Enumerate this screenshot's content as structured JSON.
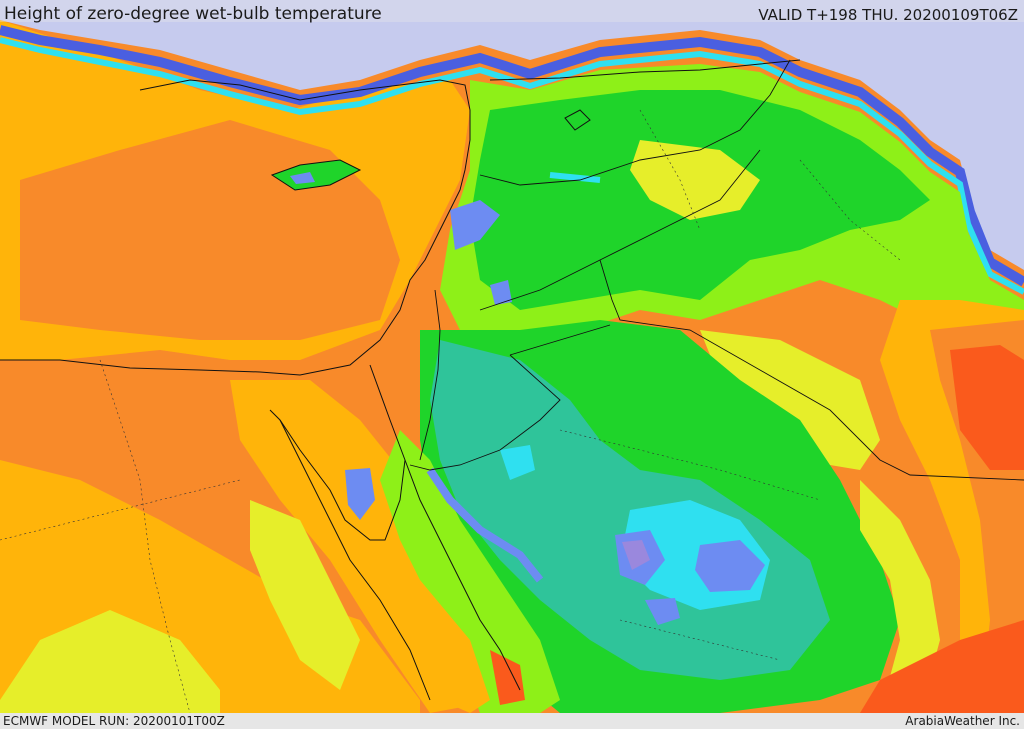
{
  "header": {
    "title": "Height of zero-degree wet-bulb temperature",
    "valid_time": "VALID T+198 THU. 20200109T06Z"
  },
  "footer": {
    "model_run": "ECMWF MODEL RUN: 20200101T00Z",
    "credit": "ArabiaWeather Inc."
  },
  "palette": {
    "lowest_lavender": "#c6cbee",
    "deep_blue": "#4a5fe0",
    "blue": "#6d8cf2",
    "cyan": "#2fe0f0",
    "teal": "#2fc49a",
    "green": "#1fd42a",
    "light_green": "#8ef018",
    "yellow_green": "#e6ee2a",
    "yellow": "#f6f03a",
    "gold": "#ffb40a",
    "orange": "#f88a2a",
    "red_orange": "#fa5a1c",
    "purple": "#9a88dd"
  }
}
